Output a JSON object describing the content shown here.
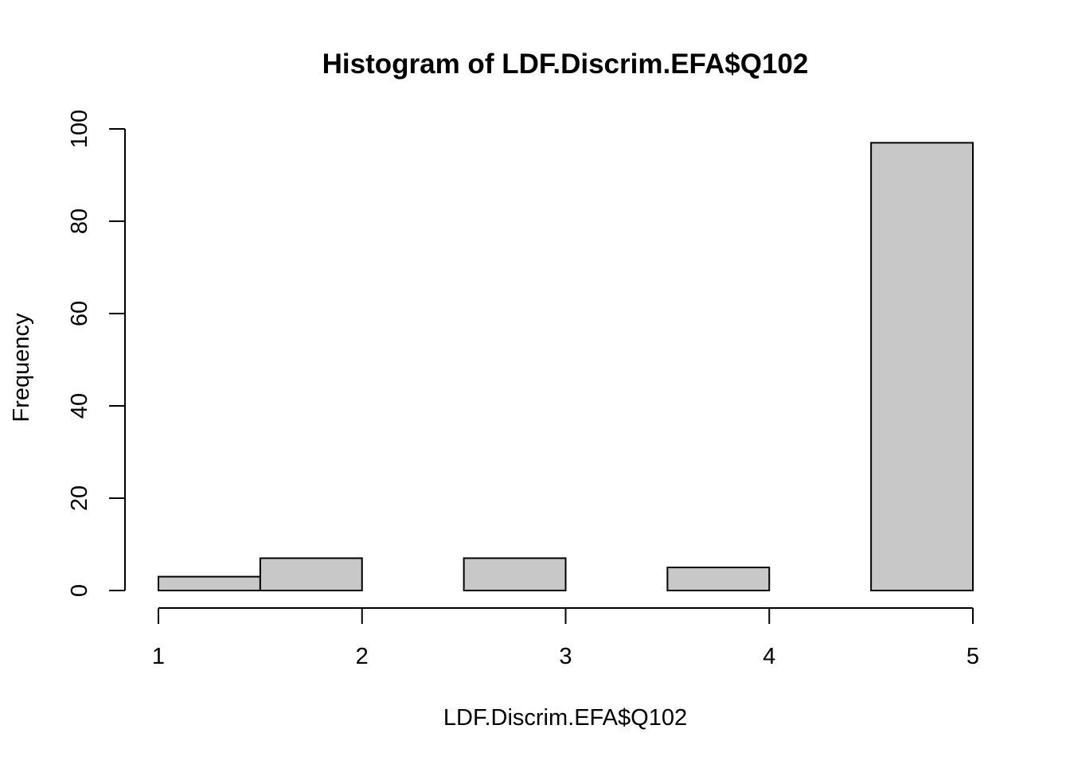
{
  "chart_data": {
    "type": "bar",
    "subtype": "histogram",
    "title": "Histogram of LDF.Discrim.EFA$Q102",
    "xlabel": "LDF.Discrim.EFA$Q102",
    "ylabel": "Frequency",
    "bins": [
      {
        "start": 1.0,
        "end": 1.5,
        "value": 3
      },
      {
        "start": 1.5,
        "end": 2.0,
        "value": 7
      },
      {
        "start": 2.0,
        "end": 2.5,
        "value": 0
      },
      {
        "start": 2.5,
        "end": 3.0,
        "value": 7
      },
      {
        "start": 3.0,
        "end": 3.5,
        "value": 0
      },
      {
        "start": 3.5,
        "end": 4.0,
        "value": 5
      },
      {
        "start": 4.0,
        "end": 4.5,
        "value": 0
      },
      {
        "start": 4.5,
        "end": 5.0,
        "value": 97
      }
    ],
    "xlim": [
      1,
      5
    ],
    "ylim": [
      0,
      100
    ],
    "x_ticks": [
      "1",
      "2",
      "3",
      "4",
      "5"
    ],
    "y_ticks": [
      "0",
      "20",
      "40",
      "60",
      "80",
      "100"
    ],
    "grid": false,
    "bar_color": "#c8c8c8",
    "edge_color": "#000000"
  }
}
